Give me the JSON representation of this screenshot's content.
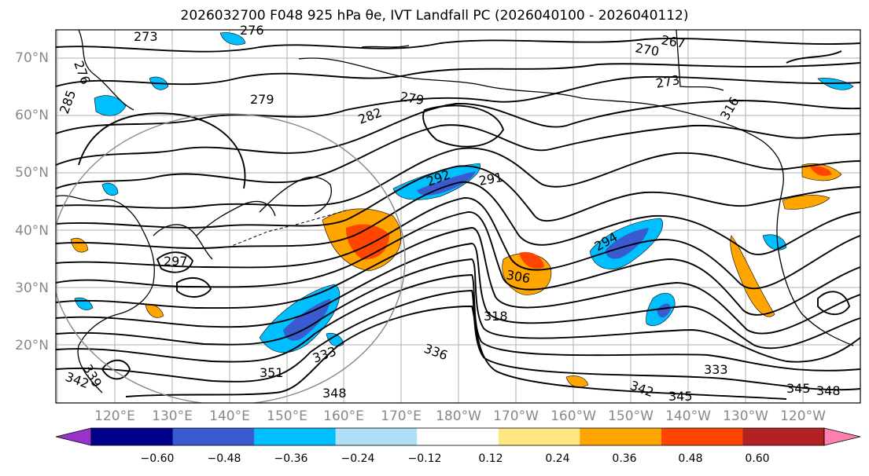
{
  "title": "2026032700 F048 925 hPa θe, IVT Landfall PC (2026040100 - 2026040112)",
  "lat_labels": [
    "70°N",
    "60°N",
    "50°N",
    "40°N",
    "30°N",
    "20°N"
  ],
  "lon_labels": [
    "120°E",
    "130°E",
    "140°E",
    "150°E",
    "160°E",
    "170°E",
    "180°W",
    "170°W",
    "160°W",
    "150°W",
    "140°W",
    "130°W",
    "120°W"
  ],
  "contour_labels": [
    "273",
    "276",
    "276",
    "267",
    "270",
    "273",
    "279",
    "285",
    "279",
    "282",
    "316",
    "292",
    "297",
    "291",
    "294",
    "306",
    "318",
    "336",
    "333",
    "342",
    "345",
    "348",
    "351",
    "333",
    "339",
    "342",
    "345",
    "348"
  ],
  "colorbar": {
    "ticks": [
      "−0.60",
      "−0.48",
      "−0.36",
      "−0.24",
      "−0.12",
      "0.12",
      "0.24",
      "0.36",
      "0.48",
      "0.60"
    ],
    "colors": [
      "#9932cc",
      "#00008b",
      "#3a5bcf",
      "#00bfff",
      "#b0e0f8",
      "#ffffff",
      "#ffe680",
      "#ffa500",
      "#ff4500",
      "#b22222",
      "#ff80b0"
    ]
  }
}
